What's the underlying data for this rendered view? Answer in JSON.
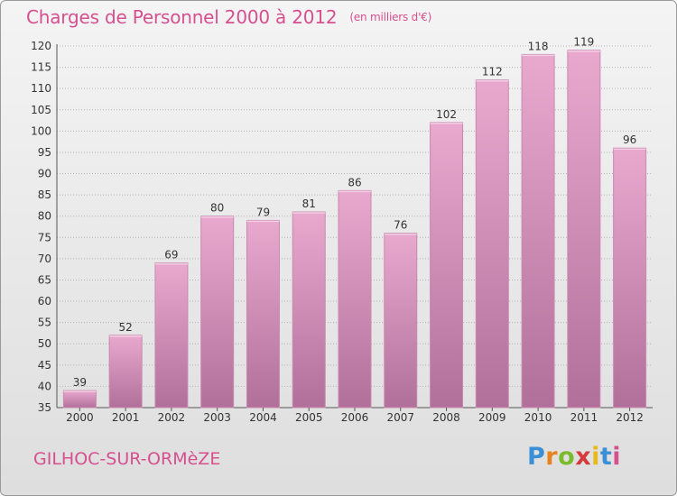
{
  "header": {
    "title": "Charges de Personnel 2000 à 2012",
    "subtitle": "(en milliers d'€)"
  },
  "footer": {
    "commune": "GILHOC-SUR-ORMèZE",
    "logo_text": "Proxiti"
  },
  "colors": {
    "title": "#d6508f",
    "bar_top": "#e9a9cf",
    "bar_bottom": "#b0709a",
    "grid": "#b4b4b4"
  },
  "chart_data": {
    "type": "bar",
    "title": "Charges de Personnel 2000 à 2012",
    "subtitle": "(en milliers d'€)",
    "categories": [
      "2000",
      "2001",
      "2002",
      "2003",
      "2004",
      "2005",
      "2006",
      "2007",
      "2008",
      "2009",
      "2010",
      "2011",
      "2012"
    ],
    "values": [
      39,
      52,
      69,
      80,
      79,
      81,
      86,
      76,
      102,
      112,
      118,
      119,
      96
    ],
    "ylim": [
      35,
      120
    ],
    "yticks": [
      35,
      40,
      45,
      50,
      55,
      60,
      65,
      70,
      75,
      80,
      85,
      90,
      95,
      100,
      105,
      110,
      115,
      120
    ],
    "grid": true,
    "data_labels": true
  }
}
